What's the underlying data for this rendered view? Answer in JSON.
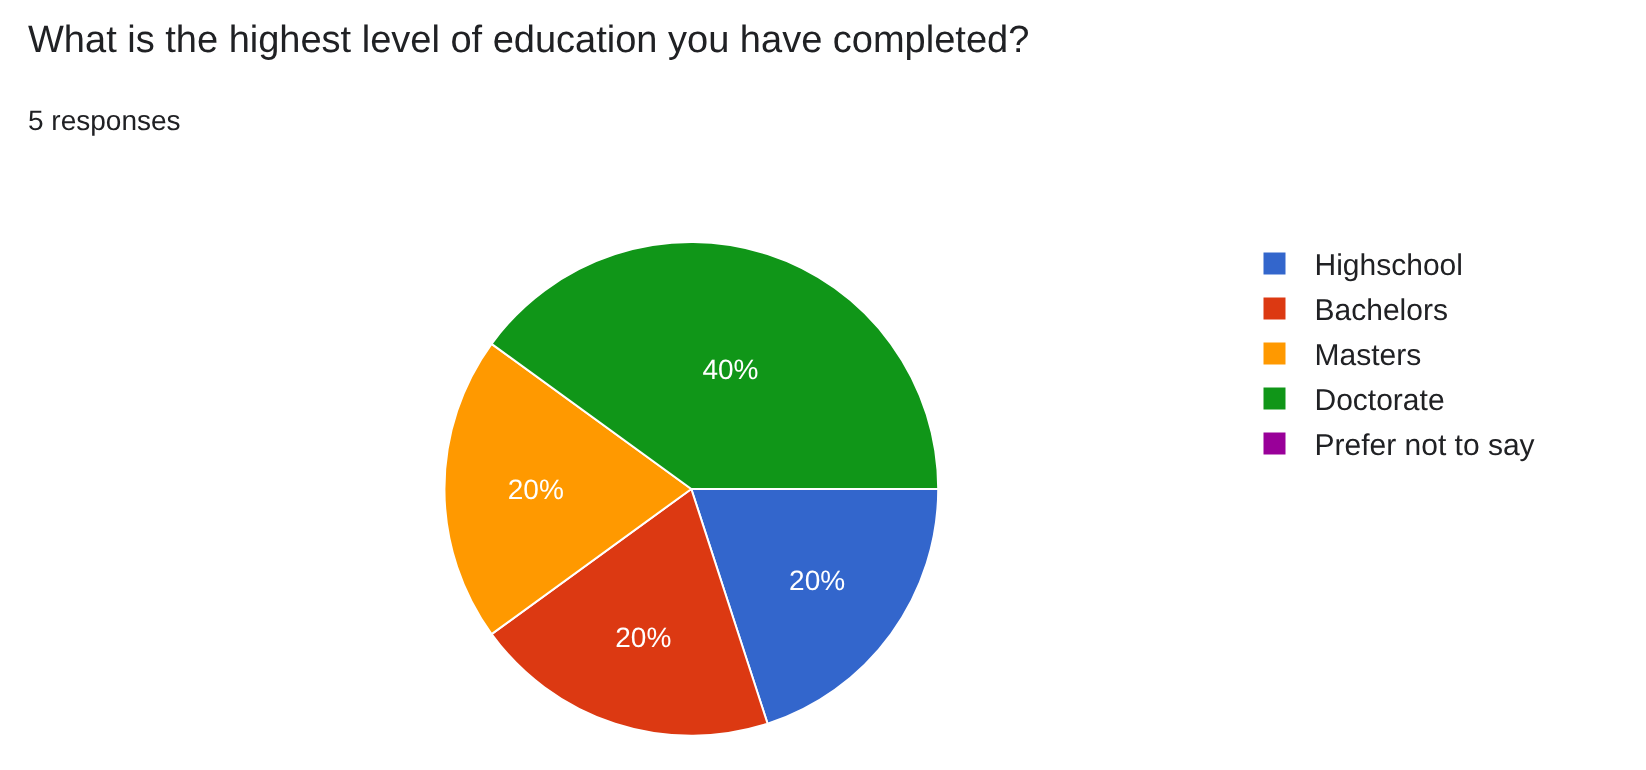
{
  "chart_data": {
    "type": "pie",
    "title": "What is the highest level of education you have completed?",
    "subtitle": "5 responses",
    "categories": [
      "Highschool",
      "Bachelors",
      "Masters",
      "Doctorate",
      "Prefer not to say"
    ],
    "values": [
      20,
      20,
      20,
      40,
      0
    ],
    "value_labels": [
      "20%",
      "20%",
      "20%",
      "40%",
      null
    ],
    "colors": [
      "#3366cc",
      "#dc3912",
      "#ff9900",
      "#109618",
      "#990099"
    ],
    "legend": "right"
  }
}
